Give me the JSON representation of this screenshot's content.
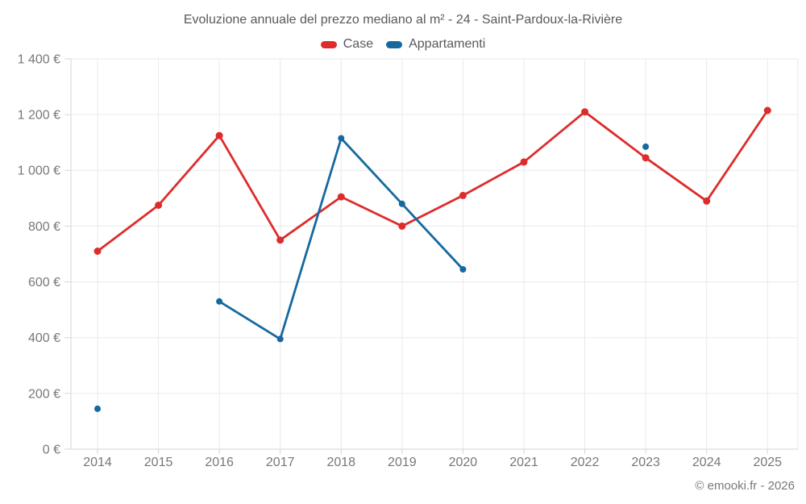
{
  "title": "Evoluzione annuale del prezzo mediano al m² - 24 - Saint-Pardoux-la-Rivière",
  "footer": "© emooki.fr - 2026",
  "legend": {
    "items": [
      {
        "label": "Case",
        "color": "#dd2c2c"
      },
      {
        "label": "Appartamenti",
        "color": "#16699f"
      }
    ]
  },
  "colors": {
    "case_series": "#dd2c2c",
    "apartments_series": "#16699f",
    "title_text": "#56595d",
    "axis_text": "#75787b",
    "gridline": "#eaeaea",
    "axis_line": "#d6d6d6"
  },
  "chart_data": {
    "type": "line",
    "title": "Evoluzione annuale del prezzo mediano al m² - 24 - Saint-Pardoux-la-Rivière",
    "categories": [
      "2014",
      "2015",
      "2016",
      "2017",
      "2018",
      "2019",
      "2020",
      "2021",
      "2022",
      "2023",
      "2024",
      "2025"
    ],
    "series": [
      {
        "name": "Case",
        "color": "#dd2c2c",
        "marker_radius": 4.5,
        "values": [
          710,
          875,
          1125,
          750,
          905,
          800,
          910,
          1030,
          1210,
          1045,
          890,
          1215
        ]
      },
      {
        "name": "Appartamenti",
        "color": "#16699f",
        "marker_radius": 4,
        "values": [
          145,
          null,
          530,
          395,
          1115,
          880,
          645,
          null,
          null,
          1085,
          null,
          null
        ]
      }
    ],
    "xlabel": "",
    "ylabel": "€",
    "ylim": [
      0,
      1400
    ],
    "y_ticks": [
      0,
      200,
      400,
      600,
      800,
      1000,
      1200,
      1400
    ],
    "y_tick_labels": [
      "0 €",
      "200 €",
      "400 €",
      "600 €",
      "800 €",
      "1 000 €",
      "1 200 €",
      "1 400 €"
    ],
    "grid": true,
    "legend_position": "top-center"
  }
}
